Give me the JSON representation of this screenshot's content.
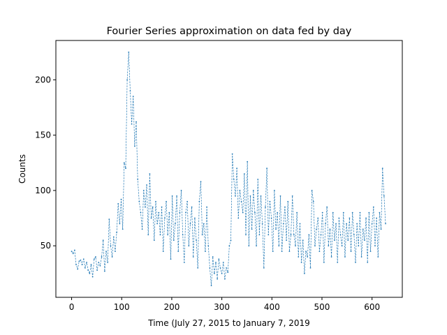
{
  "chart_data": {
    "type": "line",
    "title": "Fourier Series approximation on data fed by day",
    "xlabel": "Time (July 27, 2015 to January 7, 2019",
    "ylabel": "Counts",
    "xlim": [
      -31.45,
      660.45
    ],
    "ylim": [
      3.45,
      235.55
    ],
    "xticks": [
      0,
      100,
      200,
      300,
      400,
      500,
      600
    ],
    "yticks": [
      50,
      100,
      150,
      200
    ],
    "series": [
      {
        "color": "#1f77b4",
        "x": [
          0,
          3,
          6,
          9,
          12,
          15,
          18,
          21,
          24,
          27,
          30,
          33,
          36,
          39,
          42,
          45,
          48,
          51,
          54,
          57,
          60,
          63,
          66,
          69,
          72,
          75,
          78,
          81,
          84,
          87,
          90,
          93,
          96,
          99,
          102,
          105,
          108,
          111,
          114,
          117,
          120,
          123,
          126,
          129,
          132,
          135,
          138,
          141,
          144,
          147,
          150,
          153,
          156,
          159,
          162,
          165,
          168,
          171,
          174,
          177,
          180,
          183,
          186,
          189,
          192,
          195,
          198,
          201,
          204,
          207,
          210,
          213,
          216,
          219,
          222,
          225,
          228,
          231,
          234,
          237,
          240,
          243,
          246,
          249,
          252,
          255,
          258,
          261,
          264,
          267,
          270,
          273,
          276,
          279,
          282,
          285,
          288,
          291,
          294,
          297,
          300,
          303,
          306,
          309,
          312,
          315,
          318,
          321,
          324,
          327,
          330,
          333,
          336,
          339,
          342,
          345,
          348,
          351,
          354,
          357,
          360,
          363,
          366,
          369,
          372,
          375,
          378,
          381,
          384,
          387,
          390,
          393,
          396,
          399,
          402,
          405,
          408,
          411,
          414,
          417,
          420,
          423,
          426,
          429,
          432,
          435,
          438,
          441,
          444,
          447,
          450,
          453,
          456,
          459,
          462,
          465,
          468,
          471,
          474,
          477,
          480,
          483,
          486,
          489,
          492,
          495,
          498,
          501,
          504,
          507,
          510,
          513,
          516,
          519,
          522,
          525,
          528,
          531,
          534,
          537,
          540,
          543,
          546,
          549,
          552,
          555,
          558,
          561,
          564,
          567,
          570,
          573,
          576,
          579,
          582,
          585,
          588,
          591,
          594,
          597,
          600,
          603,
          606,
          609,
          612,
          615,
          618,
          621,
          624,
          627
        ],
        "values": [
          45,
          43,
          46,
          33,
          29,
          36,
          37,
          33,
          38,
          30,
          35,
          28,
          25,
          33,
          22,
          38,
          40,
          28,
          35,
          32,
          40,
          55,
          27,
          45,
          35,
          74,
          50,
          40,
          58,
          45,
          62,
          88,
          70,
          92,
          65,
          125,
          120,
          200,
          225,
          190,
          160,
          185,
          140,
          162,
          110,
          90,
          80,
          65,
          100,
          85,
          105,
          60,
          115,
          75,
          85,
          55,
          90,
          70,
          80,
          60,
          85,
          45,
          75,
          90,
          60,
          80,
          38,
          95,
          55,
          70,
          95,
          45,
          80,
          100,
          60,
          35,
          80,
          90,
          50,
          70,
          85,
          40,
          75,
          55,
          30,
          90,
          108,
          60,
          70,
          45,
          85,
          50,
          30,
          14,
          40,
          25,
          35,
          20,
          38,
          30,
          25,
          35,
          20,
          30,
          26,
          50,
          55,
          133,
          110,
          95,
          120,
          75,
          100,
          90,
          80,
          115,
          60,
          126,
          50,
          95,
          65,
          100,
          80,
          50,
          110,
          60,
          95,
          70,
          30,
          85,
          120,
          60,
          90,
          75,
          45,
          100,
          65,
          80,
          50,
          95,
          45,
          70,
          85,
          55,
          90,
          45,
          60,
          95,
          60,
          50,
          80,
          40,
          70,
          35,
          55,
          25,
          45,
          40,
          60,
          30,
          100,
          90,
          50,
          65,
          75,
          45,
          60,
          80,
          35,
          70,
          85,
          50,
          65,
          40,
          80,
          55,
          70,
          35,
          75,
          60,
          50,
          80,
          40,
          70,
          55,
          75,
          45,
          80,
          60,
          35,
          70,
          50,
          80,
          40,
          65,
          55,
          75,
          35,
          80,
          45,
          70,
          85,
          50,
          75,
          40,
          80,
          65,
          120,
          95,
          70
        ]
      }
    ]
  }
}
